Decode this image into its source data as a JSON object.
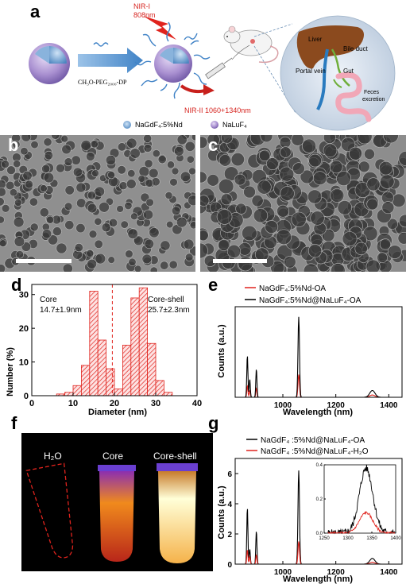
{
  "panels": {
    "a": "a",
    "b": "b",
    "c": "c",
    "d": "d",
    "e": "e",
    "f": "f",
    "g": "g"
  },
  "schematic": {
    "nir1_line1": "NIR-I",
    "nir1_line2": "808nm",
    "reagent": "CH₃O-PEG₂₀₀₀-DP",
    "nir2": "NIR-II 1060+1340nm",
    "liver": "Liver",
    "bile_duct": "Bile duct",
    "portal_vein": "Portal vein",
    "gut": "Gut",
    "feces_line1": "Feces",
    "feces_line2": "excretion",
    "legend_core": "NaGdF₄:5%Nd",
    "legend_shell": "NaLuF₄",
    "colors": {
      "core": "#6fa4d6",
      "shell": "#a88fd0",
      "arrow": "#3f82c6",
      "laser": "#e0231d",
      "liver": "#8b4a1e",
      "circle": "#cfdceb"
    }
  },
  "tem": {
    "b": "core TEM",
    "c": "core-shell TEM"
  },
  "chart_d": {
    "type": "bar",
    "ylabel": "Number (%)",
    "xlabel": "Diameter (nm)",
    "xlim": [
      0,
      40
    ],
    "ylim": [
      0,
      33
    ],
    "xticks": [
      "0",
      "10",
      "20",
      "30",
      "40"
    ],
    "yticks": [
      "0",
      "10",
      "20",
      "30"
    ],
    "core_label": "Core",
    "core_stats": "14.7±1.9nm",
    "shell_label": "Core-shell",
    "shell_stats": "25.7±2.3nm",
    "divider_x": 19.5,
    "bin_width": 2,
    "bins": [
      {
        "x": 7,
        "v": 0.5
      },
      {
        "x": 9,
        "v": 1
      },
      {
        "x": 11,
        "v": 3
      },
      {
        "x": 13,
        "v": 9
      },
      {
        "x": 15,
        "v": 31
      },
      {
        "x": 17,
        "v": 16.5
      },
      {
        "x": 19,
        "v": 8
      },
      {
        "x": 21,
        "v": 2
      },
      {
        "x": 23,
        "v": 15
      },
      {
        "x": 25,
        "v": 29
      },
      {
        "x": 27,
        "v": 32
      },
      {
        "x": 29,
        "v": 15.5
      },
      {
        "x": 31,
        "v": 4.5
      },
      {
        "x": 33,
        "v": 1
      }
    ]
  },
  "chart_e": {
    "type": "line",
    "ylabel": "Counts (a.u.)",
    "xlabel": "Wavelength (nm)",
    "xlim": [
      820,
      1450
    ],
    "xticks": [
      "1000",
      "1200",
      "1400"
    ],
    "series": [
      {
        "name": "NaGdF₄:5%Nd-OA",
        "color": "#e0231d",
        "peaks": [
          [
            866,
            0.5
          ],
          [
            875,
            0.3
          ],
          [
            900,
            0.4
          ],
          [
            1060,
            1.0
          ],
          [
            1338,
            0.1
          ]
        ]
      },
      {
        "name": "NaGdF₄:5%Nd@NaLuF₄-OA",
        "color": "#000000",
        "peaks": [
          [
            866,
            1.85
          ],
          [
            875,
            0.8
          ],
          [
            900,
            1.25
          ],
          [
            1060,
            3.55
          ],
          [
            1338,
            0.3
          ]
        ]
      }
    ],
    "ymax": 4.0
  },
  "photo_f": {
    "h2o": "H₂O",
    "core": "Core",
    "shell": "Core-shell"
  },
  "chart_g": {
    "type": "line",
    "ylabel": "Counts (a.u.)",
    "xlabel": "Wavelength (nm)",
    "xlim": [
      820,
      1450
    ],
    "ylim": [
      0,
      7
    ],
    "xticks": [
      "1000",
      "1200",
      "1400"
    ],
    "yticks": [
      "0",
      "2",
      "4",
      "6"
    ],
    "series": [
      {
        "name": "NaGdF₄ :5%Nd@NaLuF₄-OA",
        "color": "#000000",
        "peaks": [
          [
            866,
            3.75
          ],
          [
            875,
            1.0
          ],
          [
            900,
            2.2
          ],
          [
            1060,
            6.2
          ],
          [
            1338,
            0.38
          ]
        ]
      },
      {
        "name": "NaGdF₄ :5%Nd@NaLuF₄-H₂O",
        "color": "#e0231d",
        "peaks": [
          [
            866,
            0.95
          ],
          [
            875,
            0.5
          ],
          [
            900,
            0.6
          ],
          [
            1060,
            1.5
          ],
          [
            1338,
            0.12
          ]
        ]
      }
    ],
    "inset": {
      "xlim": [
        1250,
        1400
      ],
      "ylim": [
        0,
        0.4
      ],
      "xticks": [
        "1250",
        "1300",
        "1350",
        "1400"
      ],
      "yticks": [
        "0.0",
        "0.2",
        "0.4"
      ]
    }
  }
}
